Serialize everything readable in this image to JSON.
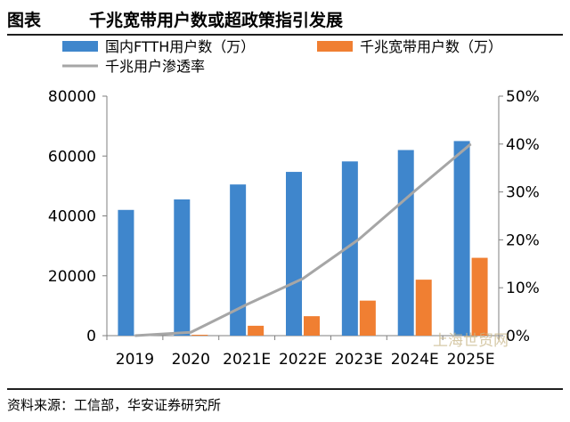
{
  "figure": {
    "label": "图表",
    "title": "千兆宽带用户数或超政策指引发展",
    "source": "资料来源：工信部，华安证券研究所",
    "watermark": "上海世贸网"
  },
  "colors": {
    "ftth": "#3f86cc",
    "gigabit": "#f07f32",
    "penetration": "#a6a6a6",
    "axis": "#7f7f7f"
  },
  "chart_data": {
    "type": "bar",
    "categories": [
      "2019",
      "2020",
      "2021E",
      "2022E",
      "2023E",
      "2024E",
      "2025E"
    ],
    "series": [
      {
        "name": "国内FTTH用户数（万）",
        "kind": "bar",
        "axis": "left",
        "color": "#3f86cc",
        "values": [
          42000,
          45500,
          50500,
          54700,
          58200,
          62000,
          65000
        ]
      },
      {
        "name": "千兆宽带用户数（万）",
        "kind": "bar",
        "axis": "left",
        "color": "#f07f32",
        "values": [
          0,
          300,
          3300,
          6500,
          11700,
          18700,
          26000
        ]
      },
      {
        "name": "千兆用户渗透率",
        "kind": "line",
        "axis": "right",
        "color": "#a6a6a6",
        "values": [
          0,
          0.7,
          6.5,
          11.9,
          20.1,
          30.2,
          40.0
        ]
      }
    ],
    "y_left": {
      "min": 0,
      "max": 80000,
      "ticks": [
        "0",
        "20000",
        "40000",
        "60000",
        "80000"
      ]
    },
    "y_right": {
      "min": 0,
      "max": 50,
      "ticks": [
        "0%",
        "10%",
        "20%",
        "30%",
        "40%",
        "50%"
      ]
    },
    "legend_position": "top",
    "grid": false
  }
}
